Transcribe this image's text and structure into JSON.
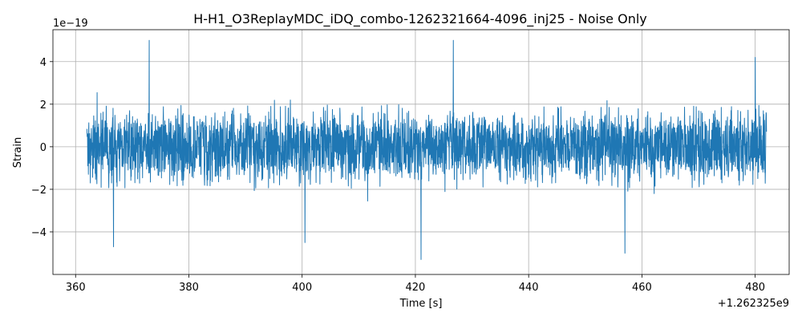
{
  "chart_data": {
    "type": "line",
    "title": "H-H1_O3ReplayMDC_iDQ_combo-1262321664-4096_inj25 - Noise Only",
    "xlabel": "Time [s]",
    "ylabel": "Strain",
    "x_offset_label": "+1.262325e9",
    "y_scale_label": "1e−19",
    "x_ticks": [
      "360",
      "380",
      "400",
      "420",
      "440",
      "460",
      "480"
    ],
    "y_ticks": [
      "−4",
      "−2",
      "0",
      "2",
      "4"
    ],
    "xlim": [
      1262325356.0,
      1262325486.0
    ],
    "ylim": [
      -6e-19,
      5.5e-19
    ],
    "grid": true,
    "series_color": "#1f77b4",
    "series": [
      {
        "x_start": 1262325362.0,
        "x_end": 1262325482.0,
        "y_range": [
          -5.3e-19,
          5e-19
        ],
        "peaks": [
          {
            "x": 1262325366.7,
            "y": -4.7e-19
          },
          {
            "x": 1262325373.0,
            "y": 5e-19
          },
          {
            "x": 1262325400.5,
            "y": -4.5e-19
          },
          {
            "x": 1262325421.0,
            "y": -5.3e-19
          },
          {
            "x": 1262325426.7,
            "y": 5e-19
          },
          {
            "x": 1262325457.0,
            "y": -5e-19
          },
          {
            "x": 1262325480.0,
            "y": 4.2e-19
          }
        ]
      }
    ]
  }
}
